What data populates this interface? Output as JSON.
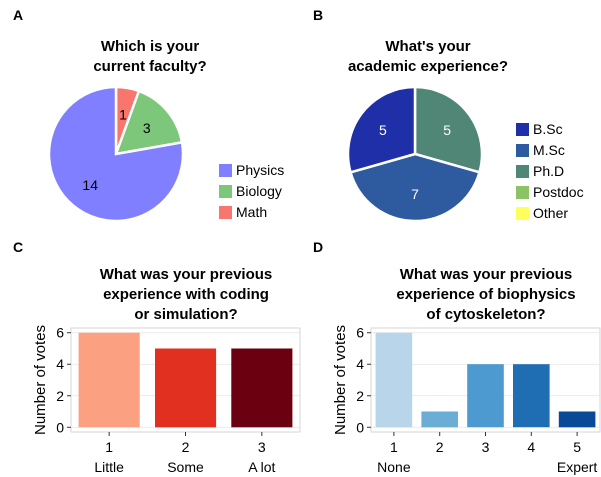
{
  "panels": [
    {
      "letter": "A",
      "title_lines": [
        "Which is your",
        "current faculty?"
      ]
    },
    {
      "letter": "B",
      "title_lines": [
        "What's your",
        "academic experience?"
      ]
    },
    {
      "letter": "C",
      "title_lines": [
        "What was your previous",
        "experience with coding",
        "or simulation?"
      ]
    },
    {
      "letter": "D",
      "title_lines": [
        "What was your previous",
        "experience of biophysics",
        "of cytoskeleton?"
      ]
    }
  ],
  "chart_data": [
    {
      "panel": "A",
      "type": "pie",
      "title": "Which is your current faculty?",
      "slices": [
        {
          "label": "Math",
          "value": 1,
          "color": "#F8766D"
        },
        {
          "label": "Biology",
          "value": 3,
          "color": "#7CC77A"
        },
        {
          "label": "Physics",
          "value": 14,
          "color": "#7F7FFF"
        }
      ],
      "legend": [
        "Physics",
        "Biology",
        "Math"
      ],
      "legend_position": "right"
    },
    {
      "panel": "B",
      "type": "pie",
      "title": "What's your academic experience?",
      "slices": [
        {
          "label": "B.Sc",
          "value": 5,
          "color": "#1F2FA8"
        },
        {
          "label": "M.Sc",
          "value": 7,
          "color": "#2E5B9F"
        },
        {
          "label": "Ph.D",
          "value": 5,
          "color": "#4F8676"
        },
        {
          "label": "Postdoc",
          "value": 0,
          "color": "#8CC365"
        },
        {
          "label": "Other",
          "value": 0,
          "color": "#FFFF5C"
        }
      ],
      "draw_order": [
        "Ph.D",
        "M.Sc",
        "B.Sc"
      ],
      "legend": [
        "B.Sc",
        "M.Sc",
        "Ph.D",
        "Postdoc",
        "Other"
      ],
      "legend_position": "right"
    },
    {
      "panel": "C",
      "type": "bar",
      "title": "What was your previous experience with coding or simulation?",
      "categories": [
        "1",
        "2",
        "3"
      ],
      "category_sublabels": [
        "Little",
        "Some",
        "A lot"
      ],
      "values": [
        6,
        5,
        5
      ],
      "colors": [
        "#FCA082",
        "#E1301F",
        "#6B0010"
      ],
      "ylabel": "Number of votes",
      "yticks": [
        0,
        2,
        4,
        6
      ],
      "ylim": [
        -0.3,
        6.3
      ],
      "grid": true
    },
    {
      "panel": "D",
      "type": "bar",
      "title": "What was your previous experience of biophysics of cytoskeleton?",
      "categories": [
        "1",
        "2",
        "3",
        "4",
        "5"
      ],
      "category_sublabels": [
        "None",
        "",
        "",
        "",
        "Expert"
      ],
      "values": [
        6,
        1,
        4,
        4,
        1
      ],
      "colors": [
        "#B8D5EA",
        "#6AAED6",
        "#4D9AD0",
        "#1F6EB4",
        "#084A97"
      ],
      "ylabel": "Number of votes",
      "yticks": [
        0,
        2,
        4,
        6
      ],
      "ylim": [
        -0.3,
        6.3
      ],
      "grid": true
    }
  ]
}
